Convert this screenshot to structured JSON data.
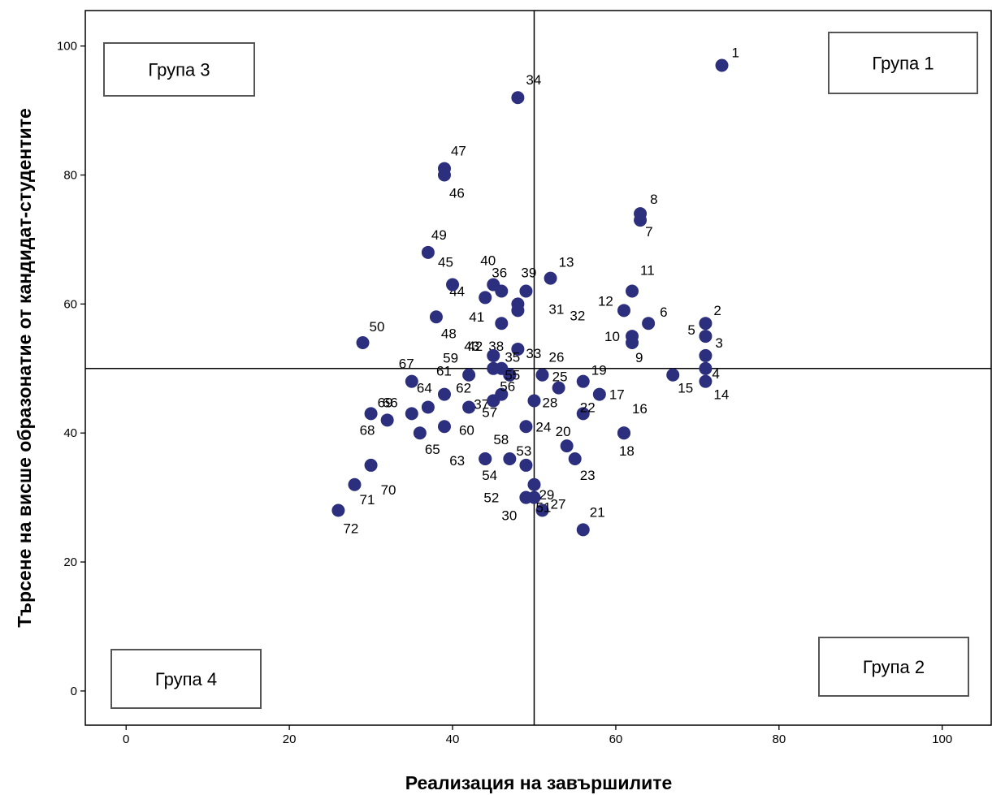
{
  "chart_data": {
    "type": "scatter",
    "title": "",
    "xlabel": "Реализация на завършилите",
    "ylabel": "Търсене на висше образонатие от кандидат-студентите",
    "xlim": [
      -5,
      106
    ],
    "ylim": [
      -5.3,
      105.5
    ],
    "xticks": [
      "0",
      "20",
      "40",
      "60",
      "80",
      "100"
    ],
    "yticks": [
      "0",
      "20",
      "40",
      "60",
      "80",
      "100"
    ],
    "reference_lines": {
      "x": 50,
      "y": 50
    },
    "grid": false,
    "marker_color": "#2b2f7d",
    "group_labels": [
      {
        "name": "Група 1",
        "corner": "top-right"
      },
      {
        "name": "Група 2",
        "corner": "bottom-right"
      },
      {
        "name": "Група 3",
        "corner": "top-left"
      },
      {
        "name": "Група 4",
        "corner": "bottom-left"
      }
    ],
    "points": [
      {
        "id": "1",
        "x": 73,
        "y": 97
      },
      {
        "id": "2",
        "x": 71,
        "y": 57
      },
      {
        "id": "3",
        "x": 71,
        "y": 52
      },
      {
        "id": "4",
        "x": 71,
        "y": 50
      },
      {
        "id": "5",
        "x": 71,
        "y": 55
      },
      {
        "id": "6",
        "x": 64,
        "y": 57
      },
      {
        "id": "7",
        "x": 63,
        "y": 73
      },
      {
        "id": "8",
        "x": 63,
        "y": 74
      },
      {
        "id": "9",
        "x": 62,
        "y": 54
      },
      {
        "id": "10",
        "x": 62,
        "y": 55
      },
      {
        "id": "11",
        "x": 62,
        "y": 62
      },
      {
        "id": "12",
        "x": 61,
        "y": 59
      },
      {
        "id": "13",
        "x": 52,
        "y": 64
      },
      {
        "id": "14",
        "x": 71,
        "y": 48
      },
      {
        "id": "15",
        "x": 67,
        "y": 49
      },
      {
        "id": "16",
        "x": 61,
        "y": 40
      },
      {
        "id": "17",
        "x": 58,
        "y": 46
      },
      {
        "id": "18",
        "x": 61,
        "y": 40
      },
      {
        "id": "19",
        "x": 56,
        "y": 48
      },
      {
        "id": "20",
        "x": 54,
        "y": 38
      },
      {
        "id": "21",
        "x": 56,
        "y": 25
      },
      {
        "id": "22",
        "x": 56,
        "y": 43
      },
      {
        "id": "23",
        "x": 55,
        "y": 36
      },
      {
        "id": "24",
        "x": 49,
        "y": 41
      },
      {
        "id": "25",
        "x": 53,
        "y": 47
      },
      {
        "id": "26",
        "x": 51,
        "y": 49
      },
      {
        "id": "27",
        "x": 51,
        "y": 28
      },
      {
        "id": "28",
        "x": 50,
        "y": 45
      },
      {
        "id": "29",
        "x": 50,
        "y": 32
      },
      {
        "id": "30",
        "x": 49,
        "y": 30
      },
      {
        "id": "31",
        "x": 48,
        "y": 60
      },
      {
        "id": "32",
        "x": 48,
        "y": 59
      },
      {
        "id": "33",
        "x": 48,
        "y": 53
      },
      {
        "id": "34",
        "x": 48,
        "y": 92
      },
      {
        "id": "35",
        "x": 47,
        "y": 49
      },
      {
        "id": "36",
        "x": 46,
        "y": 62
      },
      {
        "id": "37",
        "x": 45,
        "y": 45
      },
      {
        "id": "38",
        "x": 46,
        "y": 50
      },
      {
        "id": "39",
        "x": 49,
        "y": 62
      },
      {
        "id": "40",
        "x": 45,
        "y": 63
      },
      {
        "id": "41",
        "x": 46,
        "y": 57
      },
      {
        "id": "42",
        "x": 45,
        "y": 52
      },
      {
        "id": "43",
        "x": 45,
        "y": 50
      },
      {
        "id": "44",
        "x": 44,
        "y": 61
      },
      {
        "id": "45",
        "x": 40,
        "y": 63
      },
      {
        "id": "46",
        "x": 39,
        "y": 80
      },
      {
        "id": "47",
        "x": 39,
        "y": 81
      },
      {
        "id": "48",
        "x": 38,
        "y": 58
      },
      {
        "id": "49",
        "x": 37,
        "y": 68
      },
      {
        "id": "50",
        "x": 29,
        "y": 54
      },
      {
        "id": "51",
        "x": 50,
        "y": 30
      },
      {
        "id": "52",
        "x": 49,
        "y": 30
      },
      {
        "id": "53",
        "x": 49,
        "y": 35
      },
      {
        "id": "54",
        "x": 44,
        "y": 36
      },
      {
        "id": "55",
        "x": 47,
        "y": 49
      },
      {
        "id": "56",
        "x": 46,
        "y": 46
      },
      {
        "id": "57",
        "x": 45,
        "y": 45
      },
      {
        "id": "58",
        "x": 47,
        "y": 36
      },
      {
        "id": "59",
        "x": 42,
        "y": 49
      },
      {
        "id": "60",
        "x": 39,
        "y": 41
      },
      {
        "id": "61",
        "x": 39,
        "y": 46
      },
      {
        "id": "62",
        "x": 42,
        "y": 44
      },
      {
        "id": "63",
        "x": 44,
        "y": 36
      },
      {
        "id": "64",
        "x": 37,
        "y": 44
      },
      {
        "id": "65",
        "x": 36,
        "y": 40
      },
      {
        "id": "66",
        "x": 35,
        "y": 43
      },
      {
        "id": "67",
        "x": 35,
        "y": 48
      },
      {
        "id": "68",
        "x": 30,
        "y": 43
      },
      {
        "id": "69",
        "x": 32,
        "y": 42
      },
      {
        "id": "70",
        "x": 30,
        "y": 35
      },
      {
        "id": "71",
        "x": 28,
        "y": 32
      },
      {
        "id": "72",
        "x": 26,
        "y": 28
      }
    ]
  }
}
